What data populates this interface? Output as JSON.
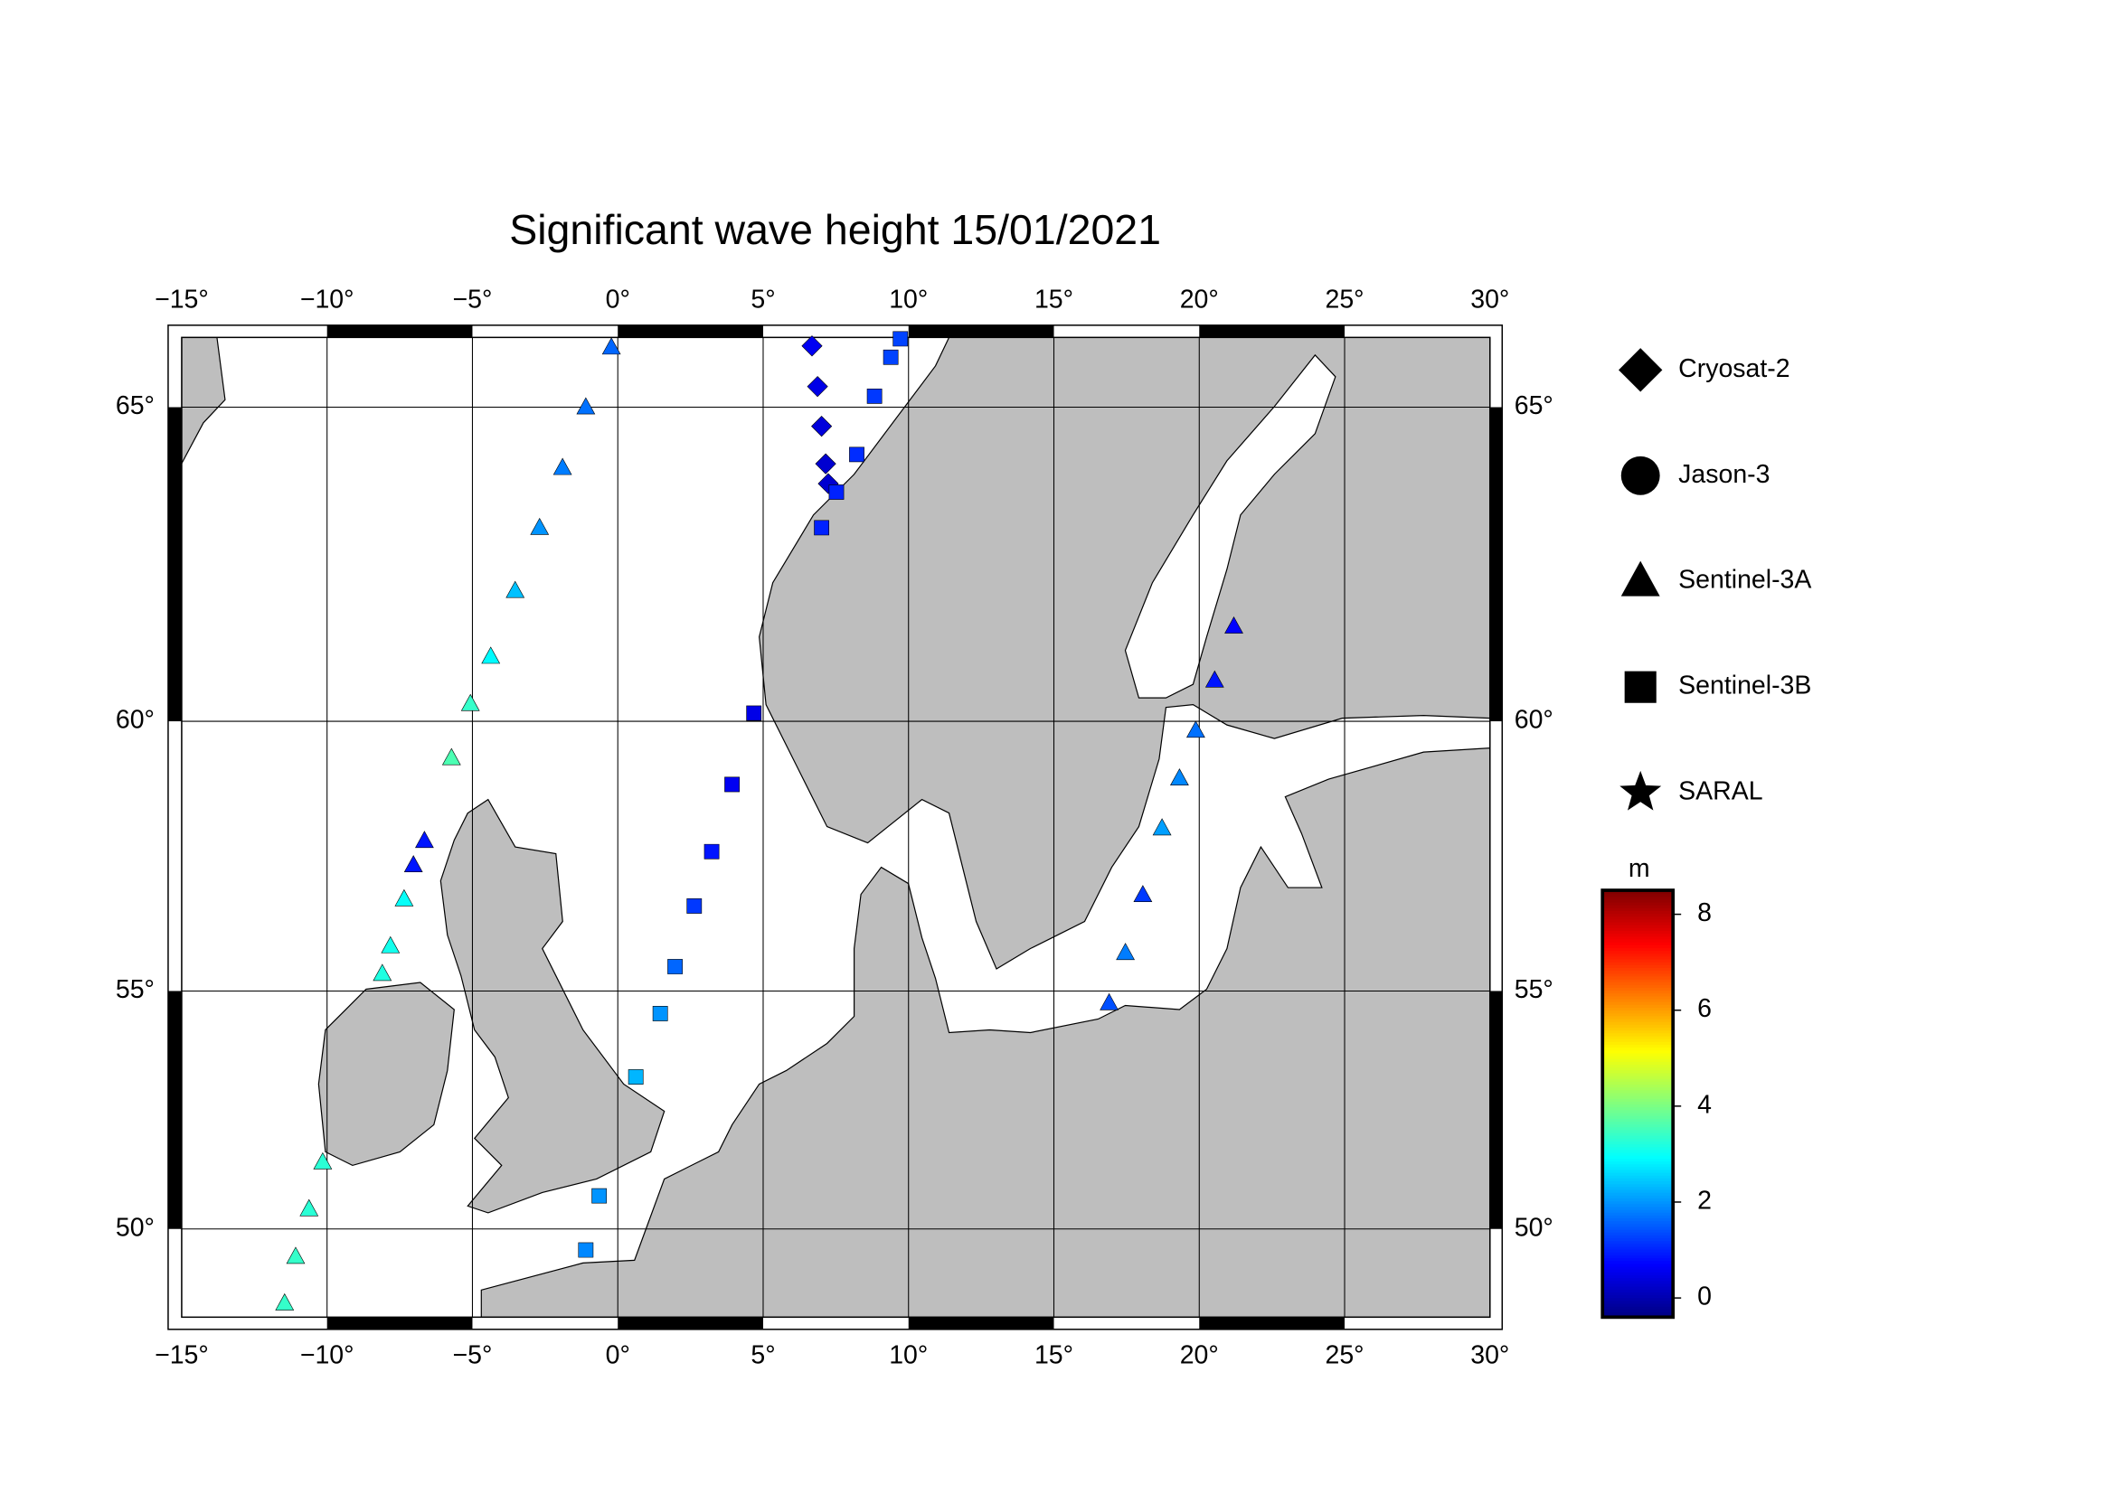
{
  "chart_data": {
    "type": "map",
    "title": "Significant wave height 15/01/2021",
    "projection": "mercator",
    "xlim": [
      -15,
      30
    ],
    "ylim": [
      48,
      66
    ],
    "xticks": [
      {
        "value": -15,
        "label": "−15°"
      },
      {
        "value": -10,
        "label": "−10°"
      },
      {
        "value": -5,
        "label": "−5°"
      },
      {
        "value": 0,
        "label": "0°"
      },
      {
        "value": 5,
        "label": "5°"
      },
      {
        "value": 10,
        "label": "10°"
      },
      {
        "value": 15,
        "label": "15°"
      },
      {
        "value": 20,
        "label": "20°"
      },
      {
        "value": 25,
        "label": "25°"
      },
      {
        "value": 30,
        "label": "30°"
      }
    ],
    "yticks": [
      {
        "value": 50,
        "label": "50°"
      },
      {
        "value": 55,
        "label": "55°"
      },
      {
        "value": 60,
        "label": "60°"
      },
      {
        "value": 65,
        "label": "65°"
      }
    ],
    "grid": true,
    "colorbar": {
      "label": "m",
      "colormap": "jet",
      "clim": [
        -0.4,
        8.5
      ],
      "ticks": [
        0,
        2,
        4,
        6,
        8
      ]
    },
    "series": [
      {
        "name": "Cryosat-2",
        "marker": "diamond",
        "lon": [
          6.68,
          6.87,
          7.01,
          7.15,
          7.24
        ],
        "lat": [
          65.88,
          65.3,
          64.72,
          64.16,
          63.86
        ],
        "values": [
          0.6,
          0.5,
          0.4,
          0.3,
          0.3
        ]
      },
      {
        "name": "Jason-3",
        "marker": "circle",
        "lon": [],
        "lat": [],
        "values": []
      },
      {
        "name": "Sentinel-3A",
        "marker": "triangle",
        "lon": [
          -0.22,
          -1.1,
          -1.9,
          -2.69,
          -3.53,
          -4.37,
          -5.07,
          -5.72,
          -6.65,
          -7.03,
          -7.35,
          -7.82,
          -8.1,
          -10.15,
          -10.62,
          -11.08,
          -11.46,
          16.9,
          17.46,
          18.06,
          18.72,
          19.32,
          19.88,
          20.53,
          21.19
        ],
        "lat": [
          65.86,
          65.0,
          64.1,
          63.18,
          62.18,
          61.1,
          60.3,
          59.36,
          57.87,
          57.42,
          56.78,
          55.88,
          55.34,
          51.46,
          50.44,
          49.38,
          48.32,
          54.76,
          55.75,
          56.86,
          58.1,
          59.0,
          59.84,
          60.7,
          61.6
        ],
        "values": [
          1.6,
          1.7,
          1.8,
          2.0,
          2.4,
          2.9,
          3.4,
          3.6,
          0.9,
          0.9,
          3.0,
          3.1,
          3.2,
          3.3,
          3.3,
          3.4,
          3.4,
          1.4,
          1.8,
          1.2,
          2.1,
          1.9,
          1.7,
          0.9,
          0.7
        ]
      },
      {
        "name": "Sentinel-3B",
        "marker": "square",
        "lon": [
          4.68,
          3.93,
          3.23,
          2.63,
          1.97,
          1.46,
          0.62,
          -0.64,
          -1.1,
          7.01,
          7.52,
          8.22,
          8.83,
          9.39,
          9.72
        ],
        "lat": [
          60.14,
          58.89,
          57.67,
          56.65,
          55.48,
          54.55,
          53.26,
          50.73,
          49.53,
          63.18,
          63.73,
          64.3,
          65.16,
          65.72,
          65.98
        ],
        "values": [
          0.5,
          0.6,
          0.9,
          1.2,
          1.6,
          2.0,
          2.3,
          2.0,
          1.9,
          1.0,
          1.0,
          1.1,
          1.2,
          1.3,
          1.3
        ]
      },
      {
        "name": "SARAL",
        "marker": "star",
        "lon": [],
        "lat": [],
        "values": []
      }
    ]
  }
}
